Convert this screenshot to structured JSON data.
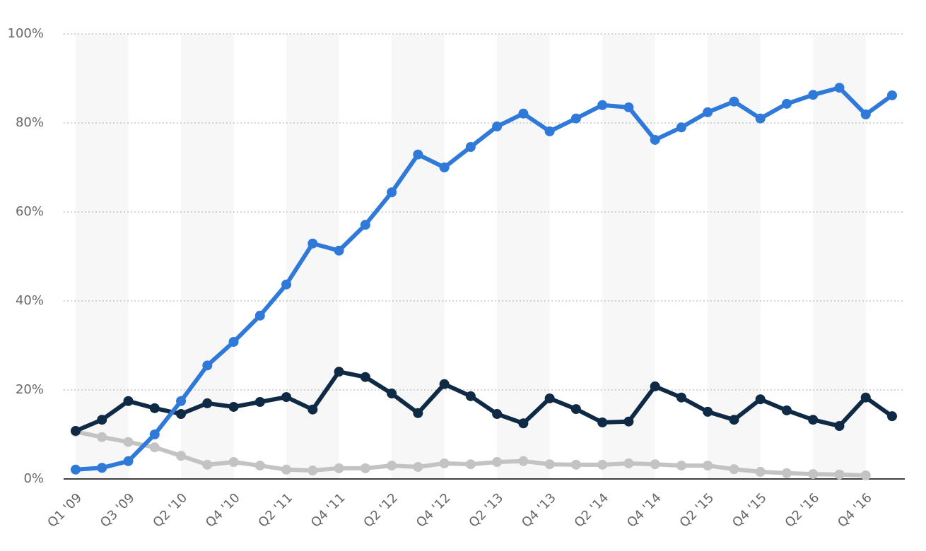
{
  "chart_data": {
    "type": "line",
    "categories": [
      "Q1 '09",
      null,
      "Q3 '09",
      null,
      "Q2 '10",
      null,
      "Q4 '10",
      null,
      "Q2 '11",
      null,
      "Q4 '11",
      null,
      "Q2 '12",
      null,
      "Q4 '12",
      null,
      "Q2 '13",
      null,
      "Q4 '13",
      null,
      "Q2 '14",
      null,
      "Q4 '14",
      null,
      "Q2 '15",
      null,
      "Q4 '15",
      null,
      "Q2 '16",
      null,
      "Q4 '16",
      null
    ],
    "series": [
      {
        "color": "#2f7ad9",
        "values": [
          2.1,
          2.5,
          4,
          10,
          17.5,
          25.5,
          30.8,
          36.7,
          43.7,
          52.9,
          51.3,
          57.1,
          64.4,
          72.9,
          70,
          74.6,
          79.2,
          82.1,
          78.1,
          81,
          84,
          83.5,
          76.2,
          79,
          82.4,
          84.8,
          81,
          84.3,
          86.3,
          87.9,
          81.9,
          86.2
        ]
      },
      {
        "color": "#0f2a44",
        "values": [
          10.8,
          13.3,
          17.5,
          15.9,
          14.6,
          17,
          16.2,
          17.3,
          18.4,
          15.6,
          24.1,
          22.9,
          19.2,
          14.8,
          21.3,
          18.6,
          14.6,
          12.5,
          18.1,
          15.7,
          12.7,
          12.9,
          20.8,
          18.3,
          15.1,
          13.3,
          17.9,
          15.4,
          13.3,
          11.9,
          18.3,
          14.1
        ]
      },
      {
        "color": "#c3c3c3",
        "values": [
          10.6,
          9.4,
          8.3,
          7.1,
          5.2,
          3.2,
          3.8,
          3,
          2.1,
          1.9,
          2.4,
          2.4,
          3,
          2.7,
          3.5,
          3.3,
          3.8,
          4,
          3.3,
          3.2,
          3.2,
          3.5,
          3.3,
          3,
          3,
          2.2,
          1.6,
          1.3,
          1.1,
          1,
          0.8,
          null
        ]
      }
    ],
    "ylim": [
      0,
      100
    ],
    "yticks": [
      {
        "value": 0,
        "label": "0%"
      },
      {
        "value": 20,
        "label": "20%"
      },
      {
        "value": 40,
        "label": "40%"
      },
      {
        "value": 60,
        "label": "60%"
      },
      {
        "value": 80,
        "label": "80%"
      },
      {
        "value": 100,
        "label": "100%"
      }
    ],
    "grid": true
  }
}
